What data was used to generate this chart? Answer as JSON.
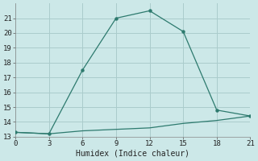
{
  "xlabel": "Humidex (Indice chaleur)",
  "ylabel": "",
  "background_color": "#cce8e8",
  "grid_color": "#aacccc",
  "line_color": "#2d7a6e",
  "series1_x": [
    0,
    3,
    6,
    9,
    12,
    15,
    18,
    21
  ],
  "series1_y": [
    13.3,
    13.2,
    17.5,
    21.0,
    21.5,
    20.1,
    14.8,
    14.4
  ],
  "series2_x": [
    0,
    3,
    6,
    9,
    12,
    15,
    18,
    21
  ],
  "series2_y": [
    13.3,
    13.2,
    13.4,
    13.5,
    13.6,
    13.9,
    14.1,
    14.4
  ],
  "xlim": [
    0,
    21
  ],
  "ylim": [
    13,
    22
  ],
  "xticks": [
    0,
    3,
    6,
    9,
    12,
    15,
    18,
    21
  ],
  "yticks": [
    13,
    14,
    15,
    16,
    17,
    18,
    19,
    20,
    21
  ]
}
